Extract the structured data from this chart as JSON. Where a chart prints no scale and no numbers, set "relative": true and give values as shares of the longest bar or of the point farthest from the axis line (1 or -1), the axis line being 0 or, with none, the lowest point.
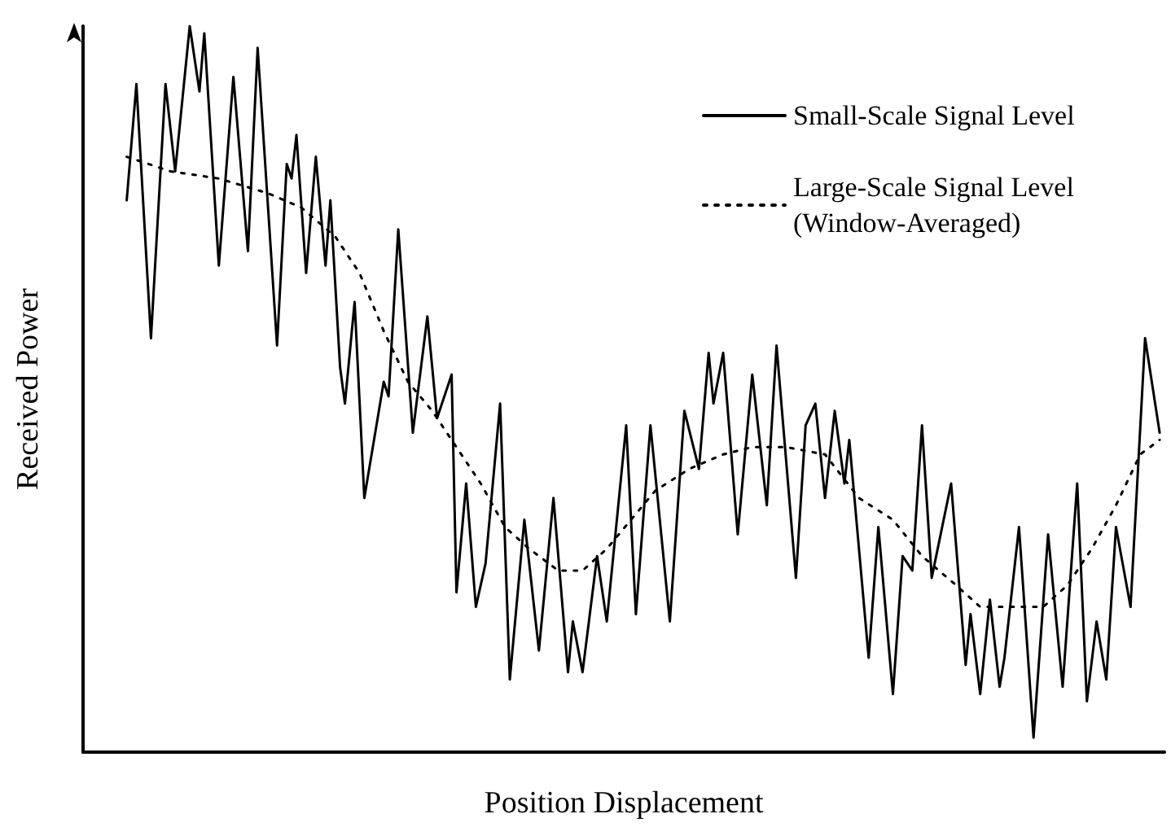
{
  "chart_data": {
    "type": "line",
    "relative": true,
    "xlabel": "Position Displacement",
    "ylabel": "Received Power",
    "tick_labels": false,
    "grid": false,
    "legend": "top right",
    "marker": "none",
    "categories": [
      null,
      null,
      null,
      null,
      null,
      null,
      null,
      null,
      null,
      null,
      null,
      null,
      null,
      null,
      null,
      null,
      null,
      null,
      null,
      null,
      null,
      null,
      null,
      null,
      null,
      null,
      null,
      null,
      null,
      null,
      null,
      null,
      null,
      null,
      null,
      null,
      null,
      null,
      null,
      null,
      null,
      null,
      null,
      null,
      null,
      null,
      null,
      null,
      null,
      null,
      null,
      null,
      null,
      null,
      null,
      null,
      null,
      null,
      null,
      null,
      null,
      null,
      null,
      null,
      null,
      null,
      null,
      null,
      null,
      null,
      null,
      null,
      null,
      null,
      null,
      null,
      null,
      null,
      null,
      null,
      null,
      null,
      null,
      null,
      null,
      null,
      null,
      null,
      null,
      null,
      null,
      null,
      null,
      null,
      null,
      null,
      null,
      null,
      null,
      null,
      null,
      null,
      null,
      null,
      null,
      null,
      null,
      null,
      null,
      null,
      null,
      null,
      null,
      null,
      null,
      null,
      null,
      null,
      null,
      null,
      null,
      null,
      null,
      null,
      null,
      null,
      null,
      null,
      null,
      null,
      null,
      null,
      null,
      null,
      null,
      null,
      null,
      null,
      null,
      null,
      null,
      null,
      null,
      null,
      null,
      null,
      null,
      null,
      null,
      null,
      null,
      null,
      null,
      null,
      null,
      null,
      null,
      null,
      null,
      null,
      null,
      null,
      null,
      null,
      null,
      null,
      null,
      null,
      null,
      null,
      null,
      null,
      null,
      null,
      null,
      null,
      null,
      null,
      null,
      null,
      null,
      null,
      null,
      null,
      null,
      null,
      null,
      null,
      null,
      null,
      null,
      null,
      null,
      null,
      null,
      null,
      null,
      null,
      null,
      null,
      null,
      null,
      null,
      null,
      null,
      null,
      null,
      null,
      null,
      null,
      null,
      null,
      null,
      null,
      null,
      null,
      null,
      null,
      null,
      null,
      null,
      null,
      null,
      null
    ],
    "series": [
      {
        "name": "Small-Scale Signal Level",
        "color": "#000000",
        "line_style": "solid",
        "values": [
          null,
          null,
          null,
          null,
          null,
          null,
          null,
          null,
          null,
          0.76,
          null,
          0.92,
          null,
          null,
          0.57,
          null,
          null,
          0.92,
          null,
          0.8,
          null,
          null,
          1.0,
          null,
          0.91,
          0.99,
          null,
          null,
          0.67,
          null,
          null,
          0.93,
          null,
          null,
          0.69,
          null,
          0.97,
          null,
          null,
          null,
          0.56,
          null,
          0.81,
          0.79,
          0.85,
          null,
          0.66,
          null,
          0.82,
          null,
          0.67,
          0.76,
          null,
          0.53,
          0.48,
          null,
          0.62,
          null,
          0.35,
          null,
          null,
          null,
          0.51,
          0.49,
          null,
          0.72,
          null,
          null,
          0.44,
          null,
          null,
          0.6,
          null,
          0.46,
          null,
          null,
          0.52,
          0.22,
          null,
          0.37,
          null,
          0.2,
          null,
          0.26,
          null,
          null,
          0.48,
          null,
          0.1,
          null,
          null,
          0.32,
          null,
          null,
          0.14,
          null,
          null,
          0.35,
          null,
          null,
          0.11,
          0.18,
          null,
          0.11,
          null,
          null,
          0.27,
          null,
          0.18,
          null,
          null,
          null,
          0.45,
          null,
          0.19,
          null,
          null,
          0.45,
          null,
          null,
          null,
          0.18,
          null,
          null,
          0.47,
          null,
          null,
          0.39,
          null,
          0.55,
          0.48,
          null,
          0.55,
          null,
          null,
          0.3,
          null,
          null,
          0.52,
          null,
          null,
          0.34,
          null,
          0.56,
          null,
          null,
          null,
          0.24,
          null,
          0.45,
          null,
          0.48,
          null,
          0.35,
          null,
          0.47,
          null,
          0.37,
          0.43,
          null,
          null,
          null,
          0.13,
          null,
          0.31,
          null,
          null,
          0.08,
          null,
          0.27,
          null,
          0.25,
          null,
          0.45,
          null,
          0.24,
          null,
          null,
          null,
          0.37,
          null,
          null,
          0.12,
          0.19,
          null,
          0.08,
          null,
          0.21,
          null,
          0.09,
          0.13,
          null,
          null,
          0.31,
          null,
          null,
          0.02,
          null,
          null,
          0.3,
          null,
          null,
          0.09,
          null,
          null,
          0.37,
          null,
          0.07,
          null,
          0.18,
          null,
          0.1,
          null,
          0.31,
          null,
          null,
          0.2,
          null,
          null,
          0.57,
          null,
          null,
          0.44,
          null
        ]
      },
      {
        "name": "Large-Scale Signal Level (Window-Averaged)",
        "color": "#000000",
        "line_style": "dotted",
        "values": [
          null,
          null,
          null,
          null,
          null,
          null,
          null,
          null,
          null,
          0.82,
          null,
          null,
          null,
          null,
          null,
          null,
          null,
          null,
          0.8,
          null,
          null,
          null,
          null,
          null,
          null,
          null,
          null,
          null,
          0.79,
          null,
          null,
          null,
          null,
          null,
          null,
          null,
          null,
          null,
          0.77,
          null,
          null,
          null,
          null,
          null,
          null,
          0.75,
          null,
          null,
          null,
          null,
          null,
          null,
          0.71,
          null,
          null,
          null,
          null,
          0.66,
          null,
          null,
          null,
          null,
          0.58,
          null,
          null,
          null,
          null,
          0.51,
          null,
          null,
          null,
          null,
          0.47,
          null,
          null,
          null,
          null,
          0.42,
          null,
          null,
          null,
          null,
          0.37,
          null,
          null,
          null,
          null,
          0.31,
          null,
          null,
          null,
          null,
          0.28,
          null,
          null,
          null,
          null,
          null,
          0.25,
          null,
          null,
          null,
          null,
          0.25,
          null,
          null,
          null,
          null,
          0.28,
          null,
          null,
          null,
          null,
          0.32,
          null,
          null,
          null,
          null,
          0.36,
          null,
          null,
          null,
          null,
          null,
          null,
          0.39,
          null,
          null,
          null,
          null,
          null,
          null,
          0.41,
          null,
          null,
          null,
          null,
          null,
          0.42,
          null,
          null,
          null,
          null,
          null,
          null,
          0.42,
          null,
          null,
          null,
          null,
          null,
          null,
          null,
          0.41,
          null,
          null,
          null,
          null,
          null,
          null,
          0.35,
          null,
          null,
          null,
          null,
          null,
          null,
          0.32,
          null,
          null,
          null,
          null,
          null,
          0.27,
          null,
          null,
          null,
          null,
          null,
          null,
          0.23,
          null,
          null,
          null,
          null,
          0.2,
          null,
          null,
          null,
          null,
          null,
          null,
          0.2,
          null,
          null,
          null,
          null,
          null,
          0.2,
          null,
          null,
          null,
          null,
          0.23,
          null,
          null,
          null,
          null,
          0.28,
          null,
          null,
          null,
          null,
          0.34,
          null,
          null,
          null,
          null,
          0.41,
          null,
          null,
          null,
          0.43,
          null
        ]
      }
    ]
  }
}
